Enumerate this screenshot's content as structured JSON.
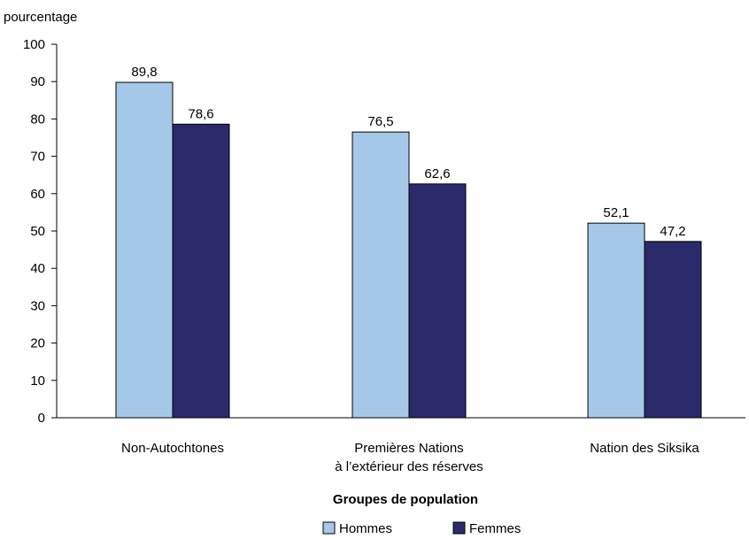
{
  "chart_data": {
    "type": "bar",
    "ylabel": "pourcentage",
    "xlabel": "Groupes de population",
    "ylim": [
      0,
      100
    ],
    "yticks": [
      0,
      10,
      20,
      30,
      40,
      50,
      60,
      70,
      80,
      90,
      100
    ],
    "categories": [
      [
        "Non-Autochtones"
      ],
      [
        "Premières Nations",
        "à l’extérieur des réserves"
      ],
      [
        "Nation des Siksika"
      ]
    ],
    "series": [
      {
        "name": "Hommes",
        "color": "#a6c8e8",
        "values": [
          89.8,
          76.5,
          52.1
        ],
        "labels": [
          "89,8",
          "76,5",
          "52,1"
        ]
      },
      {
        "name": "Femmes",
        "color": "#2b2a6b",
        "values": [
          78.6,
          62.6,
          47.2
        ],
        "labels": [
          "78,6",
          "62,6",
          "47,2"
        ]
      }
    ],
    "grid": false,
    "legend_position": "bottom"
  }
}
